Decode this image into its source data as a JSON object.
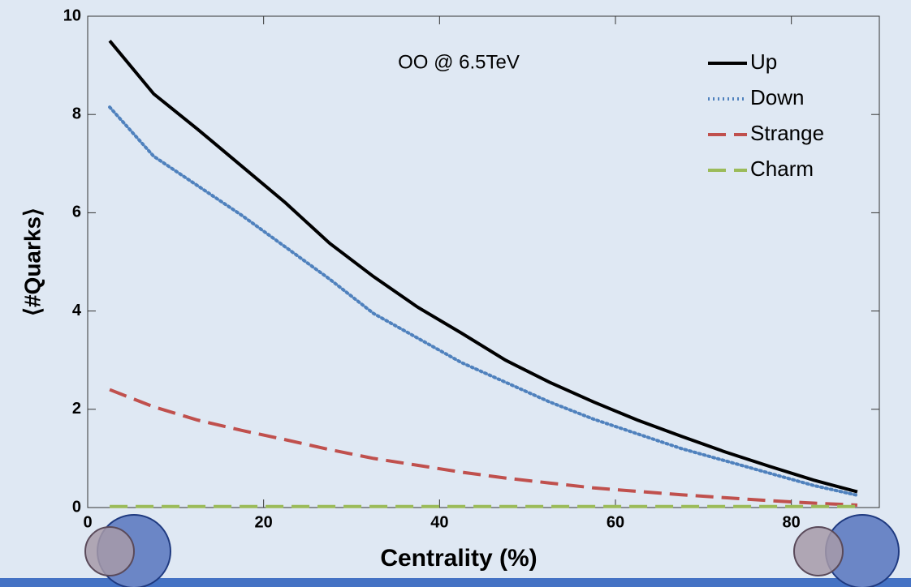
{
  "chart_data": {
    "type": "line",
    "annotation": "OO @ 6.5TeV",
    "x_label": "Centrality (%)",
    "y_label": "⟨#Quarks⟩",
    "x": [
      2.5,
      7.5,
      12.5,
      17.5,
      22.5,
      27.5,
      32.5,
      37.5,
      42.5,
      47.5,
      52.5,
      57.5,
      62.5,
      67.5,
      72.5,
      77.5,
      82.5,
      87.5
    ],
    "series": [
      {
        "name": "Up",
        "color": "#000000",
        "dash": "solid",
        "values": [
          9.5,
          8.42,
          7.7,
          6.95,
          6.2,
          5.38,
          4.7,
          4.08,
          3.55,
          3.0,
          2.55,
          2.15,
          1.78,
          1.45,
          1.13,
          0.84,
          0.56,
          0.32
        ]
      },
      {
        "name": "Down",
        "color": "#4f81bd",
        "dash": "dotted",
        "values": [
          8.15,
          7.15,
          6.55,
          5.95,
          5.3,
          4.65,
          3.95,
          3.45,
          2.95,
          2.55,
          2.15,
          1.8,
          1.5,
          1.2,
          0.95,
          0.7,
          0.45,
          0.25
        ]
      },
      {
        "name": "Strange",
        "color": "#c0504d",
        "dash": "dashed",
        "values": [
          2.4,
          2.05,
          1.78,
          1.57,
          1.38,
          1.18,
          1.0,
          0.86,
          0.72,
          0.6,
          0.5,
          0.4,
          0.33,
          0.26,
          0.2,
          0.14,
          0.09,
          0.05
        ]
      },
      {
        "name": "Charm",
        "color": "#9bbb59",
        "dash": "dashed",
        "values": [
          0.02,
          0.02,
          0.02,
          0.02,
          0.02,
          0.02,
          0.02,
          0.02,
          0.02,
          0.02,
          0.02,
          0.02,
          0.02,
          0.02,
          0.02,
          0.02,
          0.02,
          0.02
        ]
      }
    ],
    "xlim": [
      0,
      90
    ],
    "xticks": [
      0,
      20,
      40,
      60,
      80
    ],
    "ylim": [
      0,
      10
    ],
    "yticks": [
      0,
      2,
      4,
      6,
      8,
      10
    ],
    "legend": "top-right"
  }
}
